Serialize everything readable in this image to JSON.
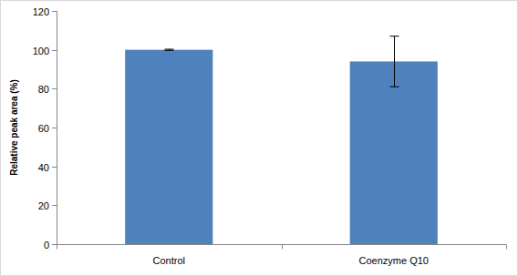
{
  "chart_data": {
    "type": "bar",
    "y_label": "Relative peak area (%)",
    "categories": [
      "Control",
      "Coenzyme Q10"
    ],
    "values": [
      100,
      94
    ],
    "errors": [
      0.3,
      13
    ],
    "color": "#4f81bd",
    "ylim": [
      0,
      120
    ],
    "yticks": [
      0,
      20,
      40,
      60,
      80,
      100,
      120
    ],
    "grid": false
  }
}
